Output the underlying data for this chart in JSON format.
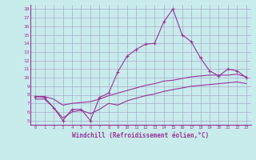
{
  "xlabel": "Windchill (Refroidissement éolien,°C)",
  "bg_color": "#c8ecec",
  "grid_color": "#aaaacc",
  "line_color": "#993399",
  "line1_x": [
    0,
    1,
    2,
    3,
    4,
    5,
    6,
    7,
    8,
    9,
    10,
    11,
    12,
    13,
    14,
    15,
    16,
    17,
    18,
    19,
    20,
    21,
    22,
    23
  ],
  "line1_y": [
    7.8,
    7.7,
    6.5,
    5.0,
    6.3,
    6.3,
    5.0,
    7.7,
    8.2,
    10.7,
    12.5,
    13.3,
    13.9,
    14.0,
    16.5,
    18.0,
    15.0,
    14.2,
    12.3,
    10.8,
    10.2,
    11.0,
    10.8,
    10.0
  ],
  "line2_x": [
    0,
    1,
    2,
    3,
    4,
    5,
    6,
    7,
    8,
    9,
    10,
    11,
    12,
    13,
    14,
    15,
    16,
    17,
    18,
    19,
    20,
    21,
    22,
    23
  ],
  "line2_y": [
    7.8,
    7.8,
    7.5,
    6.8,
    7.0,
    7.1,
    7.2,
    7.5,
    7.9,
    8.2,
    8.5,
    8.8,
    9.1,
    9.3,
    9.6,
    9.7,
    9.9,
    10.1,
    10.2,
    10.3,
    10.3,
    10.3,
    10.4,
    10.1
  ],
  "line3_x": [
    0,
    1,
    2,
    3,
    4,
    5,
    6,
    7,
    8,
    9,
    10,
    11,
    12,
    13,
    14,
    15,
    16,
    17,
    18,
    19,
    20,
    21,
    22,
    23
  ],
  "line3_y": [
    7.5,
    7.5,
    6.5,
    5.3,
    6.0,
    6.2,
    5.8,
    6.3,
    7.0,
    6.8,
    7.3,
    7.6,
    7.9,
    8.1,
    8.4,
    8.6,
    8.8,
    9.0,
    9.1,
    9.2,
    9.3,
    9.4,
    9.5,
    9.3
  ],
  "ylim": [
    4.5,
    18.5
  ],
  "yticks": [
    5,
    6,
    7,
    8,
    9,
    10,
    11,
    12,
    13,
    14,
    15,
    16,
    17,
    18
  ],
  "xticks": [
    0,
    1,
    2,
    3,
    4,
    5,
    6,
    7,
    8,
    9,
    10,
    11,
    12,
    13,
    14,
    15,
    16,
    17,
    18,
    19,
    20,
    21,
    22,
    23
  ],
  "marker": "+"
}
